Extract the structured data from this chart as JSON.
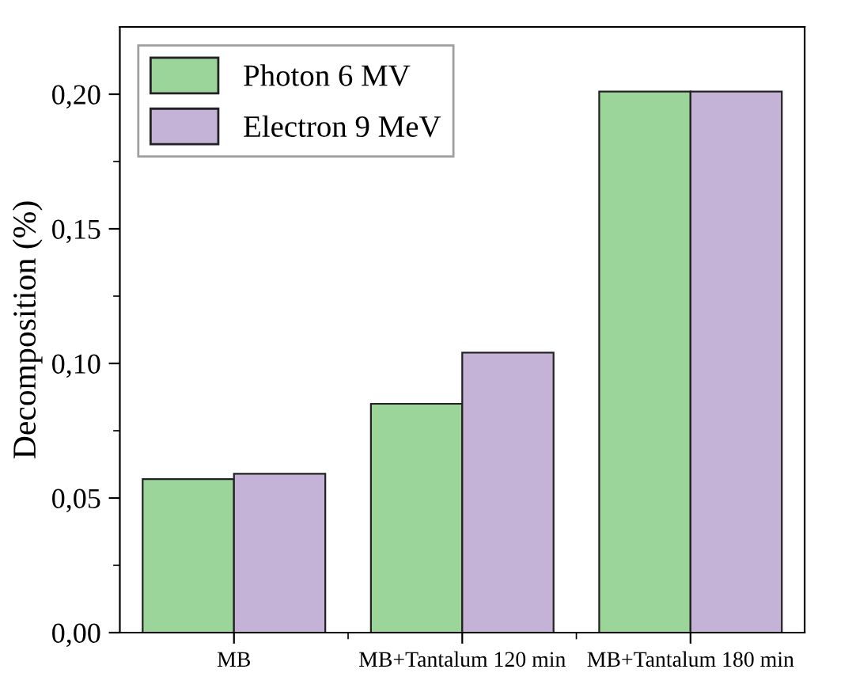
{
  "chart_data": {
    "type": "bar",
    "ylabel": "Decomposition (%)",
    "categories": [
      "MB",
      "MB+Tantalum 120 min",
      "MB+Tantalum 180 min"
    ],
    "series": [
      {
        "name": "Photon 6 MV",
        "color": "#9cd59a",
        "values": [
          0.057,
          0.085,
          0.201
        ]
      },
      {
        "name": "Electron 9 MeV",
        "color": "#c4b3d7",
        "values": [
          0.059,
          0.104,
          0.201
        ]
      }
    ],
    "ylim": [
      0,
      0.225
    ],
    "yticks": [
      {
        "value": 0,
        "label": "0,00"
      },
      {
        "value": 0.025,
        "label": null
      },
      {
        "value": 0.05,
        "label": "0,05"
      },
      {
        "value": 0.075,
        "label": null
      },
      {
        "value": 0.1,
        "label": "0,10"
      },
      {
        "value": 0.125,
        "label": null
      },
      {
        "value": 0.15,
        "label": "0,15"
      },
      {
        "value": 0.175,
        "label": null
      },
      {
        "value": 0.2,
        "label": "0,20"
      }
    ],
    "grid": false,
    "legend": "top left"
  }
}
